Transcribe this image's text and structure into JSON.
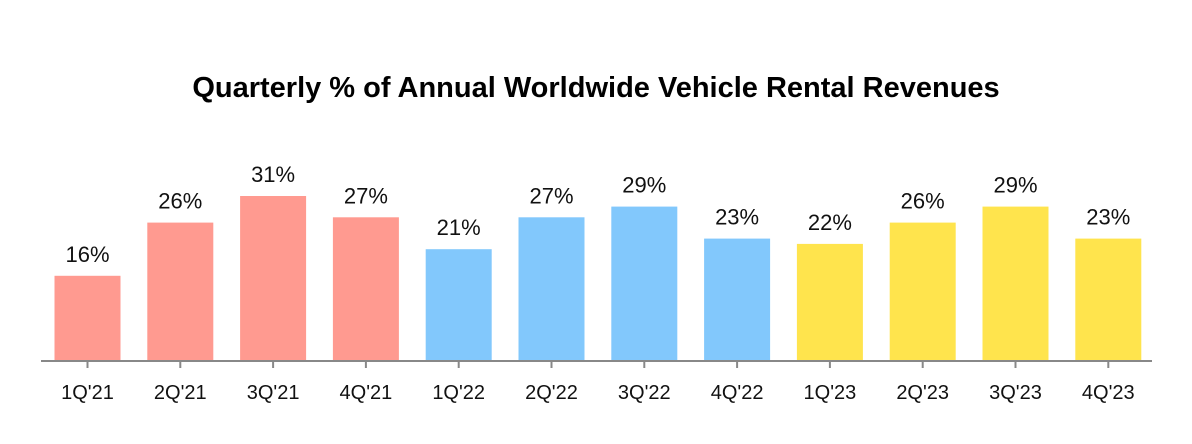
{
  "chart_data": {
    "type": "bar",
    "title": "Quarterly % of Annual Worldwide Vehicle Rental Revenues",
    "categories": [
      "1Q'21",
      "2Q'21",
      "3Q'21",
      "4Q'21",
      "1Q'22",
      "2Q'22",
      "3Q'22",
      "4Q'22",
      "1Q'23",
      "2Q'23",
      "3Q'23",
      "4Q'23"
    ],
    "values": [
      16,
      26,
      31,
      27,
      21,
      27,
      29,
      23,
      22,
      26,
      29,
      23
    ],
    "value_labels": [
      "16%",
      "26%",
      "31%",
      "27%",
      "21%",
      "27%",
      "29%",
      "23%",
      "22%",
      "26%",
      "29%",
      "23%"
    ],
    "bar_colors": [
      "#ff9a90",
      "#ff9a90",
      "#ff9a90",
      "#ff9a90",
      "#82c8fc",
      "#82c8fc",
      "#82c8fc",
      "#82c8fc",
      "#ffe44d",
      "#ffe44d",
      "#ffe44d",
      "#ffe44d"
    ],
    "axis_color": "#888888",
    "ylim": [
      0,
      31
    ],
    "grid": false,
    "xlabel": "",
    "ylabel": ""
  }
}
